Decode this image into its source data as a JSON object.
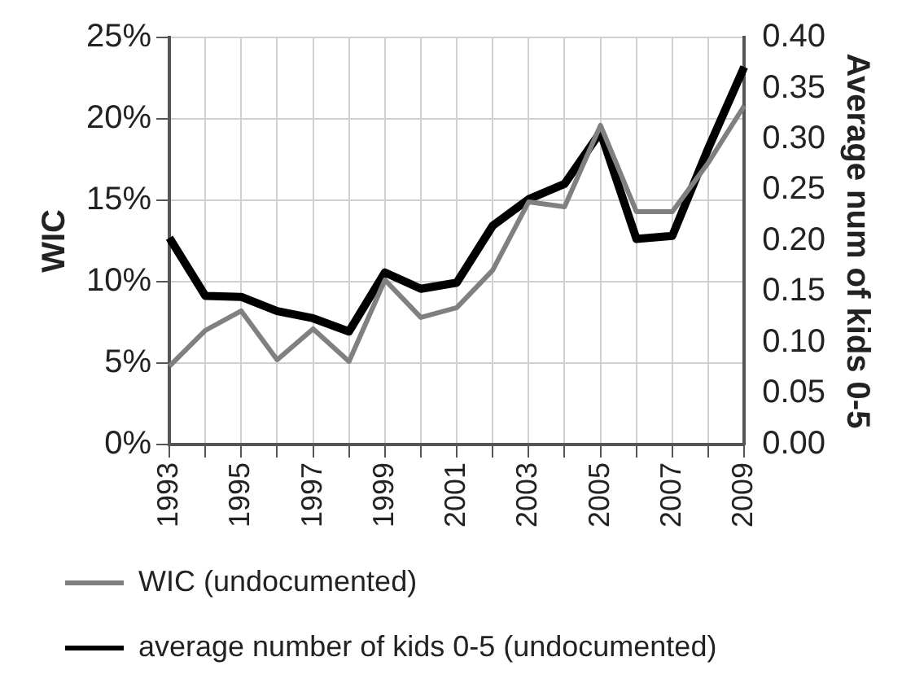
{
  "chart_data": {
    "type": "line",
    "ylabel": "WIC",
    "y2label": "Average num of kids 0-5",
    "categories": [
      "1993",
      null,
      "1995",
      null,
      "1997",
      null,
      "1999",
      null,
      "2001",
      null,
      "2003",
      null,
      "2005",
      null,
      "2007",
      null,
      "2009"
    ],
    "series": [
      {
        "name": "WIC (undocumented)",
        "color": "#808080",
        "values": [
          4.8,
          7.0,
          8.2,
          5.2,
          7.1,
          5.1,
          10.1,
          7.8,
          8.4,
          10.7,
          14.9,
          14.6,
          19.6,
          14.3,
          14.3,
          17.3,
          20.8
        ]
      },
      {
        "name": "average number of kids 0-5 (undocumented)",
        "color": "#000000",
        "axis": "y2",
        "values": [
          0.203,
          0.146,
          0.145,
          0.131,
          0.124,
          0.111,
          0.169,
          0.153,
          0.159,
          0.215,
          0.241,
          0.256,
          0.307,
          0.202,
          0.205,
          0.291,
          0.371
        ]
      }
    ],
    "ylim": [
      0,
      25
    ],
    "yticks": [
      {
        "value": 0,
        "label": "0%"
      },
      {
        "value": 5,
        "label": "5%"
      },
      {
        "value": 10,
        "label": "10%"
      },
      {
        "value": 15,
        "label": "15%"
      },
      {
        "value": 20,
        "label": "20%"
      },
      {
        "value": 25,
        "label": "25%"
      }
    ],
    "y2lim": [
      0,
      0.4
    ],
    "y2ticks": [
      {
        "value": 0,
        "label": "0.00"
      },
      {
        "value": 0.05,
        "label": "0.05"
      },
      {
        "value": 0.1,
        "label": "0.10"
      },
      {
        "value": 0.15,
        "label": "0.15"
      },
      {
        "value": 0.2,
        "label": "0.20"
      },
      {
        "value": 0.25,
        "label": "0.25"
      },
      {
        "value": 0.3,
        "label": "0.30"
      },
      {
        "value": 0.35,
        "label": "0.35"
      },
      {
        "value": 0.4,
        "label": "0.40"
      }
    ],
    "grid": true,
    "legend": "bottom",
    "marker": "none",
    "line_style": "solid"
  }
}
